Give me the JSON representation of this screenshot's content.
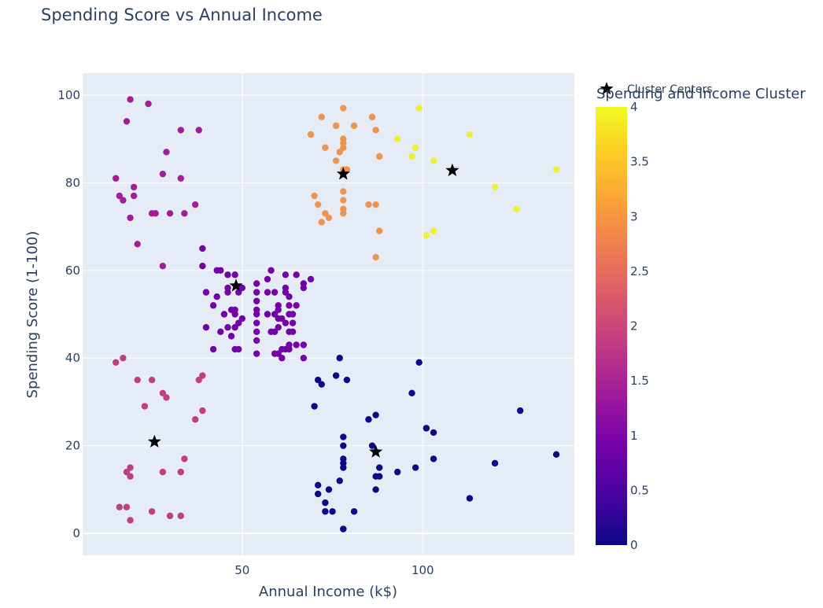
{
  "chart_data": {
    "type": "scatter",
    "title": "Spending Score vs Annual Income",
    "xlabel": "Annual Income (k$)",
    "ylabel": "Spending Score (1-100)",
    "xlim": [
      5.8,
      142
    ],
    "ylim": [
      -5,
      105
    ],
    "xticks": [
      50,
      100
    ],
    "yticks": [
      0,
      20,
      40,
      60,
      80,
      100
    ],
    "grid": true,
    "colorbar": {
      "title": "Spending and Income Cluster",
      "range": [
        0,
        4
      ],
      "ticks": [
        "0",
        "0.5",
        "1",
        "1.5",
        "2",
        "2.5",
        "3",
        "3.5",
        "4"
      ],
      "colorscale": [
        "#0d0887",
        "#46039f",
        "#7201a8",
        "#9c179e",
        "#bd3786",
        "#d8576b",
        "#ed7953",
        "#fb9f3a",
        "#fdca26",
        "#f0f921"
      ]
    },
    "legend": {
      "entries": [
        "Cluster Centers"
      ],
      "placement": "top-right"
    },
    "series": [
      {
        "cluster": 0,
        "color": "#0d0887",
        "points": [
          [
            77,
            40
          ],
          [
            99,
            39
          ],
          [
            71,
            35
          ],
          [
            76,
            36
          ],
          [
            79,
            35
          ],
          [
            72,
            34
          ],
          [
            70,
            29
          ],
          [
            97,
            32
          ],
          [
            127,
            28
          ],
          [
            87,
            27
          ],
          [
            85,
            26
          ],
          [
            101,
            24
          ],
          [
            103,
            23
          ],
          [
            78,
            22
          ],
          [
            137,
            18
          ],
          [
            78,
            20
          ],
          [
            86,
            20
          ],
          [
            113,
            8
          ],
          [
            78,
            17
          ],
          [
            120,
            16
          ],
          [
            78,
            15
          ],
          [
            88,
            15
          ],
          [
            98,
            15
          ],
          [
            93,
            14
          ],
          [
            87,
            13
          ],
          [
            88,
            13
          ],
          [
            77,
            12
          ],
          [
            71,
            11
          ],
          [
            74,
            10
          ],
          [
            87,
            10
          ],
          [
            71,
            9
          ],
          [
            73,
            7
          ],
          [
            75,
            5
          ],
          [
            73,
            5
          ],
          [
            81,
            5
          ],
          [
            78,
            1
          ],
          [
            78,
            1
          ],
          [
            103,
            17
          ],
          [
            78,
            16
          ],
          [
            101,
            24
          ]
        ]
      },
      {
        "cluster": 1,
        "color": "#7201a8",
        "points": [
          [
            39,
            65
          ],
          [
            40,
            55
          ],
          [
            39,
            61
          ],
          [
            42,
            52
          ],
          [
            43,
            60
          ],
          [
            44,
            60
          ],
          [
            46,
            55
          ],
          [
            46,
            56
          ],
          [
            46,
            59
          ],
          [
            48,
            59
          ],
          [
            48,
            47
          ],
          [
            48,
            51
          ],
          [
            48,
            50
          ],
          [
            49,
            55
          ],
          [
            49,
            48
          ],
          [
            50,
            49
          ],
          [
            50,
            56
          ],
          [
            42,
            42
          ],
          [
            40,
            47
          ],
          [
            43,
            54
          ],
          [
            44,
            46
          ],
          [
            45,
            50
          ],
          [
            46,
            47
          ],
          [
            47,
            51
          ],
          [
            47,
            45
          ],
          [
            48,
            42
          ],
          [
            49,
            42
          ],
          [
            54,
            41
          ],
          [
            54,
            44
          ],
          [
            54,
            46
          ],
          [
            54,
            48
          ],
          [
            54,
            50
          ],
          [
            54,
            51
          ],
          [
            54,
            53
          ],
          [
            54,
            55
          ],
          [
            54,
            57
          ],
          [
            57,
            58
          ],
          [
            57,
            55
          ],
          [
            58,
            60
          ],
          [
            59,
            55
          ],
          [
            59,
            50
          ],
          [
            59,
            46
          ],
          [
            59,
            41
          ],
          [
            60,
            49
          ],
          [
            60,
            51
          ],
          [
            60,
            52
          ],
          [
            60,
            47
          ],
          [
            60,
            41
          ],
          [
            61,
            40
          ],
          [
            61,
            42
          ],
          [
            62,
            42
          ],
          [
            62,
            55
          ],
          [
            62,
            56
          ],
          [
            62,
            59
          ],
          [
            62,
            48
          ],
          [
            63,
            52
          ],
          [
            63,
            54
          ],
          [
            63,
            46
          ],
          [
            63,
            50
          ],
          [
            63,
            43
          ],
          [
            63,
            42
          ],
          [
            64,
            46
          ],
          [
            64,
            50
          ],
          [
            64,
            48
          ],
          [
            65,
            59
          ],
          [
            65,
            52
          ],
          [
            65,
            43
          ],
          [
            67,
            57
          ],
          [
            67,
            43
          ],
          [
            67,
            40
          ],
          [
            67,
            56
          ],
          [
            69,
            58
          ],
          [
            57,
            50
          ],
          [
            58,
            46
          ],
          [
            61,
            49
          ]
        ]
      },
      {
        "cluster": 1.4,
        "color": "#a21d9a",
        "points": [
          [
            19,
            99
          ],
          [
            24,
            98
          ],
          [
            18,
            94
          ],
          [
            33,
            92
          ],
          [
            38,
            92
          ],
          [
            29,
            87
          ],
          [
            28,
            82
          ],
          [
            15,
            81
          ],
          [
            33,
            81
          ],
          [
            20,
            79
          ],
          [
            16,
            77
          ],
          [
            20,
            77
          ],
          [
            17,
            76
          ],
          [
            37,
            75
          ],
          [
            25,
            73
          ],
          [
            26,
            73
          ],
          [
            30,
            73
          ],
          [
            34,
            73
          ],
          [
            19,
            72
          ],
          [
            21,
            66
          ],
          [
            28,
            61
          ]
        ]
      },
      {
        "cluster": 2,
        "color": "#bf4080",
        "points": [
          [
            15,
            39
          ],
          [
            17,
            40
          ],
          [
            38,
            35
          ],
          [
            39,
            36
          ],
          [
            21,
            35
          ],
          [
            25,
            35
          ],
          [
            28,
            32
          ],
          [
            29,
            31
          ],
          [
            23,
            29
          ],
          [
            39,
            28
          ],
          [
            37,
            26
          ],
          [
            18,
            14
          ],
          [
            19,
            15
          ],
          [
            19,
            13
          ],
          [
            28,
            14
          ],
          [
            33,
            14
          ],
          [
            34,
            17
          ],
          [
            16,
            6
          ],
          [
            18,
            6
          ],
          [
            19,
            3
          ],
          [
            25,
            5
          ],
          [
            30,
            4
          ],
          [
            33,
            4
          ]
        ]
      },
      {
        "cluster": 3,
        "color": "#ec9550",
        "points": [
          [
            78,
            97
          ],
          [
            72,
            95
          ],
          [
            86,
            95
          ],
          [
            76,
            93
          ],
          [
            81,
            93
          ],
          [
            87,
            92
          ],
          [
            69,
            91
          ],
          [
            78,
            90
          ],
          [
            78,
            89
          ],
          [
            78,
            88
          ],
          [
            73,
            88
          ],
          [
            77,
            87
          ],
          [
            88,
            86
          ],
          [
            78,
            83
          ],
          [
            70,
            77
          ],
          [
            71,
            75
          ],
          [
            78,
            76
          ],
          [
            85,
            75
          ],
          [
            87,
            75
          ],
          [
            78,
            74
          ],
          [
            73,
            73
          ],
          [
            78,
            73
          ],
          [
            74,
            72
          ],
          [
            72,
            71
          ],
          [
            88,
            69
          ],
          [
            87,
            63
          ],
          [
            78,
            78
          ],
          [
            76,
            85
          ],
          [
            79,
            83
          ]
        ]
      },
      {
        "cluster": 4,
        "color": "#eeee3c",
        "points": [
          [
            99,
            97
          ],
          [
            113,
            91
          ],
          [
            93,
            90
          ],
          [
            98,
            88
          ],
          [
            97,
            86
          ],
          [
            103,
            85
          ],
          [
            137,
            83
          ],
          [
            120,
            79
          ],
          [
            126,
            74
          ],
          [
            103,
            69
          ],
          [
            101,
            68
          ]
        ]
      }
    ],
    "centers": [
      [
        25.7,
        20.9
      ],
      [
        48.3,
        56.5
      ],
      [
        78,
        82
      ],
      [
        87,
        18.6
      ],
      [
        108.2,
        82.8
      ]
    ]
  }
}
